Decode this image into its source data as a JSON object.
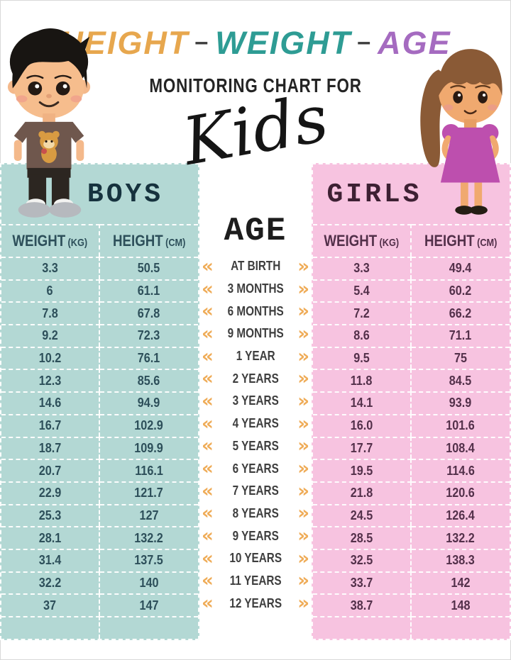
{
  "header": {
    "title": {
      "part1": "HEIGHT",
      "sep1": "–",
      "part2": "WEIGHT",
      "sep2": "–",
      "part3": "AGE"
    },
    "subtitle": "MONITORING CHART FOR",
    "script_word": "Kids"
  },
  "age_column": {
    "title": "AGE",
    "left_chevron": "«",
    "right_chevron": "»",
    "labels": [
      "AT BIRTH",
      "3 MONTHS",
      "6 MONTHS",
      "9 MONTHS",
      "1 YEAR",
      "2 YEARS",
      "3 YEARS",
      "4 YEARS",
      "5 YEARS",
      "6 YEARS",
      "7 YEARS",
      "8 YEARS",
      "9 YEARS",
      "10 YEARS",
      "11 YEARS",
      "12 YEARS"
    ]
  },
  "boys_table": {
    "title": "BOYS",
    "weight_header": "WEIGHT",
    "weight_unit": "(KG)",
    "height_header": "HEIGHT",
    "height_unit": "(CM)",
    "rows": [
      [
        "3.3",
        "50.5"
      ],
      [
        "6",
        "61.1"
      ],
      [
        "7.8",
        "67.8"
      ],
      [
        "9.2",
        "72.3"
      ],
      [
        "10.2",
        "76.1"
      ],
      [
        "12.3",
        "85.6"
      ],
      [
        "14.6",
        "94.9"
      ],
      [
        "16.7",
        "102.9"
      ],
      [
        "18.7",
        "109.9"
      ],
      [
        "20.7",
        "116.1"
      ],
      [
        "22.9",
        "121.7"
      ],
      [
        "25.3",
        "127"
      ],
      [
        "28.1",
        "132.2"
      ],
      [
        "31.4",
        "137.5"
      ],
      [
        "32.2",
        "140"
      ],
      [
        "37",
        "147"
      ]
    ]
  },
  "girls_table": {
    "title": "GIRLS",
    "weight_header": "WEIGHT",
    "weight_unit": "(KG)",
    "height_header": "HEIGHT",
    "height_unit": "(CM)",
    "rows": [
      [
        "3.3",
        "49.4"
      ],
      [
        "5.4",
        "60.2"
      ],
      [
        "7.2",
        "66.2"
      ],
      [
        "8.6",
        "71.1"
      ],
      [
        "9.5",
        "75"
      ],
      [
        "11.8",
        "84.5"
      ],
      [
        "14.1",
        "93.9"
      ],
      [
        "16.0",
        "101.6"
      ],
      [
        "17.7",
        "108.4"
      ],
      [
        "19.5",
        "114.6"
      ],
      [
        "21.8",
        "120.6"
      ],
      [
        "24.5",
        "126.4"
      ],
      [
        "28.5",
        "132.2"
      ],
      [
        "32.5",
        "138.3"
      ],
      [
        "33.7",
        "142"
      ],
      [
        "38.7",
        "148"
      ]
    ]
  },
  "colors": {
    "boys_bg": "#b3d8d4",
    "girls_bg": "#f7c3e0",
    "chevron": "#efac58",
    "title_height": "#e7a74e",
    "title_weight": "#2e9c94",
    "title_age": "#a56bc0",
    "boys_text": "#2d4f5a",
    "girls_text": "#53304a",
    "boys_title_text": "#16323e",
    "girls_title_text": "#3d2033"
  },
  "chart_data": {
    "type": "table",
    "title": "HEIGHT - WEIGHT - AGE MONITORING CHART FOR Kids",
    "categories": [
      "AT BIRTH",
      "3 MONTHS",
      "6 MONTHS",
      "9 MONTHS",
      "1 YEAR",
      "2 YEARS",
      "3 YEARS",
      "4 YEARS",
      "5 YEARS",
      "6 YEARS",
      "7 YEARS",
      "8 YEARS",
      "9 YEARS",
      "10 YEARS",
      "11 YEARS",
      "12 YEARS"
    ],
    "series": [
      {
        "name": "Boys Weight (kg)",
        "values": [
          3.3,
          6,
          7.8,
          9.2,
          10.2,
          12.3,
          14.6,
          16.7,
          18.7,
          20.7,
          22.9,
          25.3,
          28.1,
          31.4,
          32.2,
          37
        ]
      },
      {
        "name": "Boys Height (cm)",
        "values": [
          50.5,
          61.1,
          67.8,
          72.3,
          76.1,
          85.6,
          94.9,
          102.9,
          109.9,
          116.1,
          121.7,
          127,
          132.2,
          137.5,
          140,
          147
        ]
      },
      {
        "name": "Girls Weight (kg)",
        "values": [
          3.3,
          5.4,
          7.2,
          8.6,
          9.5,
          11.8,
          14.1,
          16.0,
          17.7,
          19.5,
          21.8,
          24.5,
          28.5,
          32.5,
          33.7,
          38.7
        ]
      },
      {
        "name": "Girls Height (cm)",
        "values": [
          49.4,
          60.2,
          66.2,
          71.1,
          75,
          84.5,
          93.9,
          101.6,
          108.4,
          114.6,
          120.6,
          126.4,
          132.2,
          138.3,
          142,
          148
        ]
      }
    ]
  }
}
